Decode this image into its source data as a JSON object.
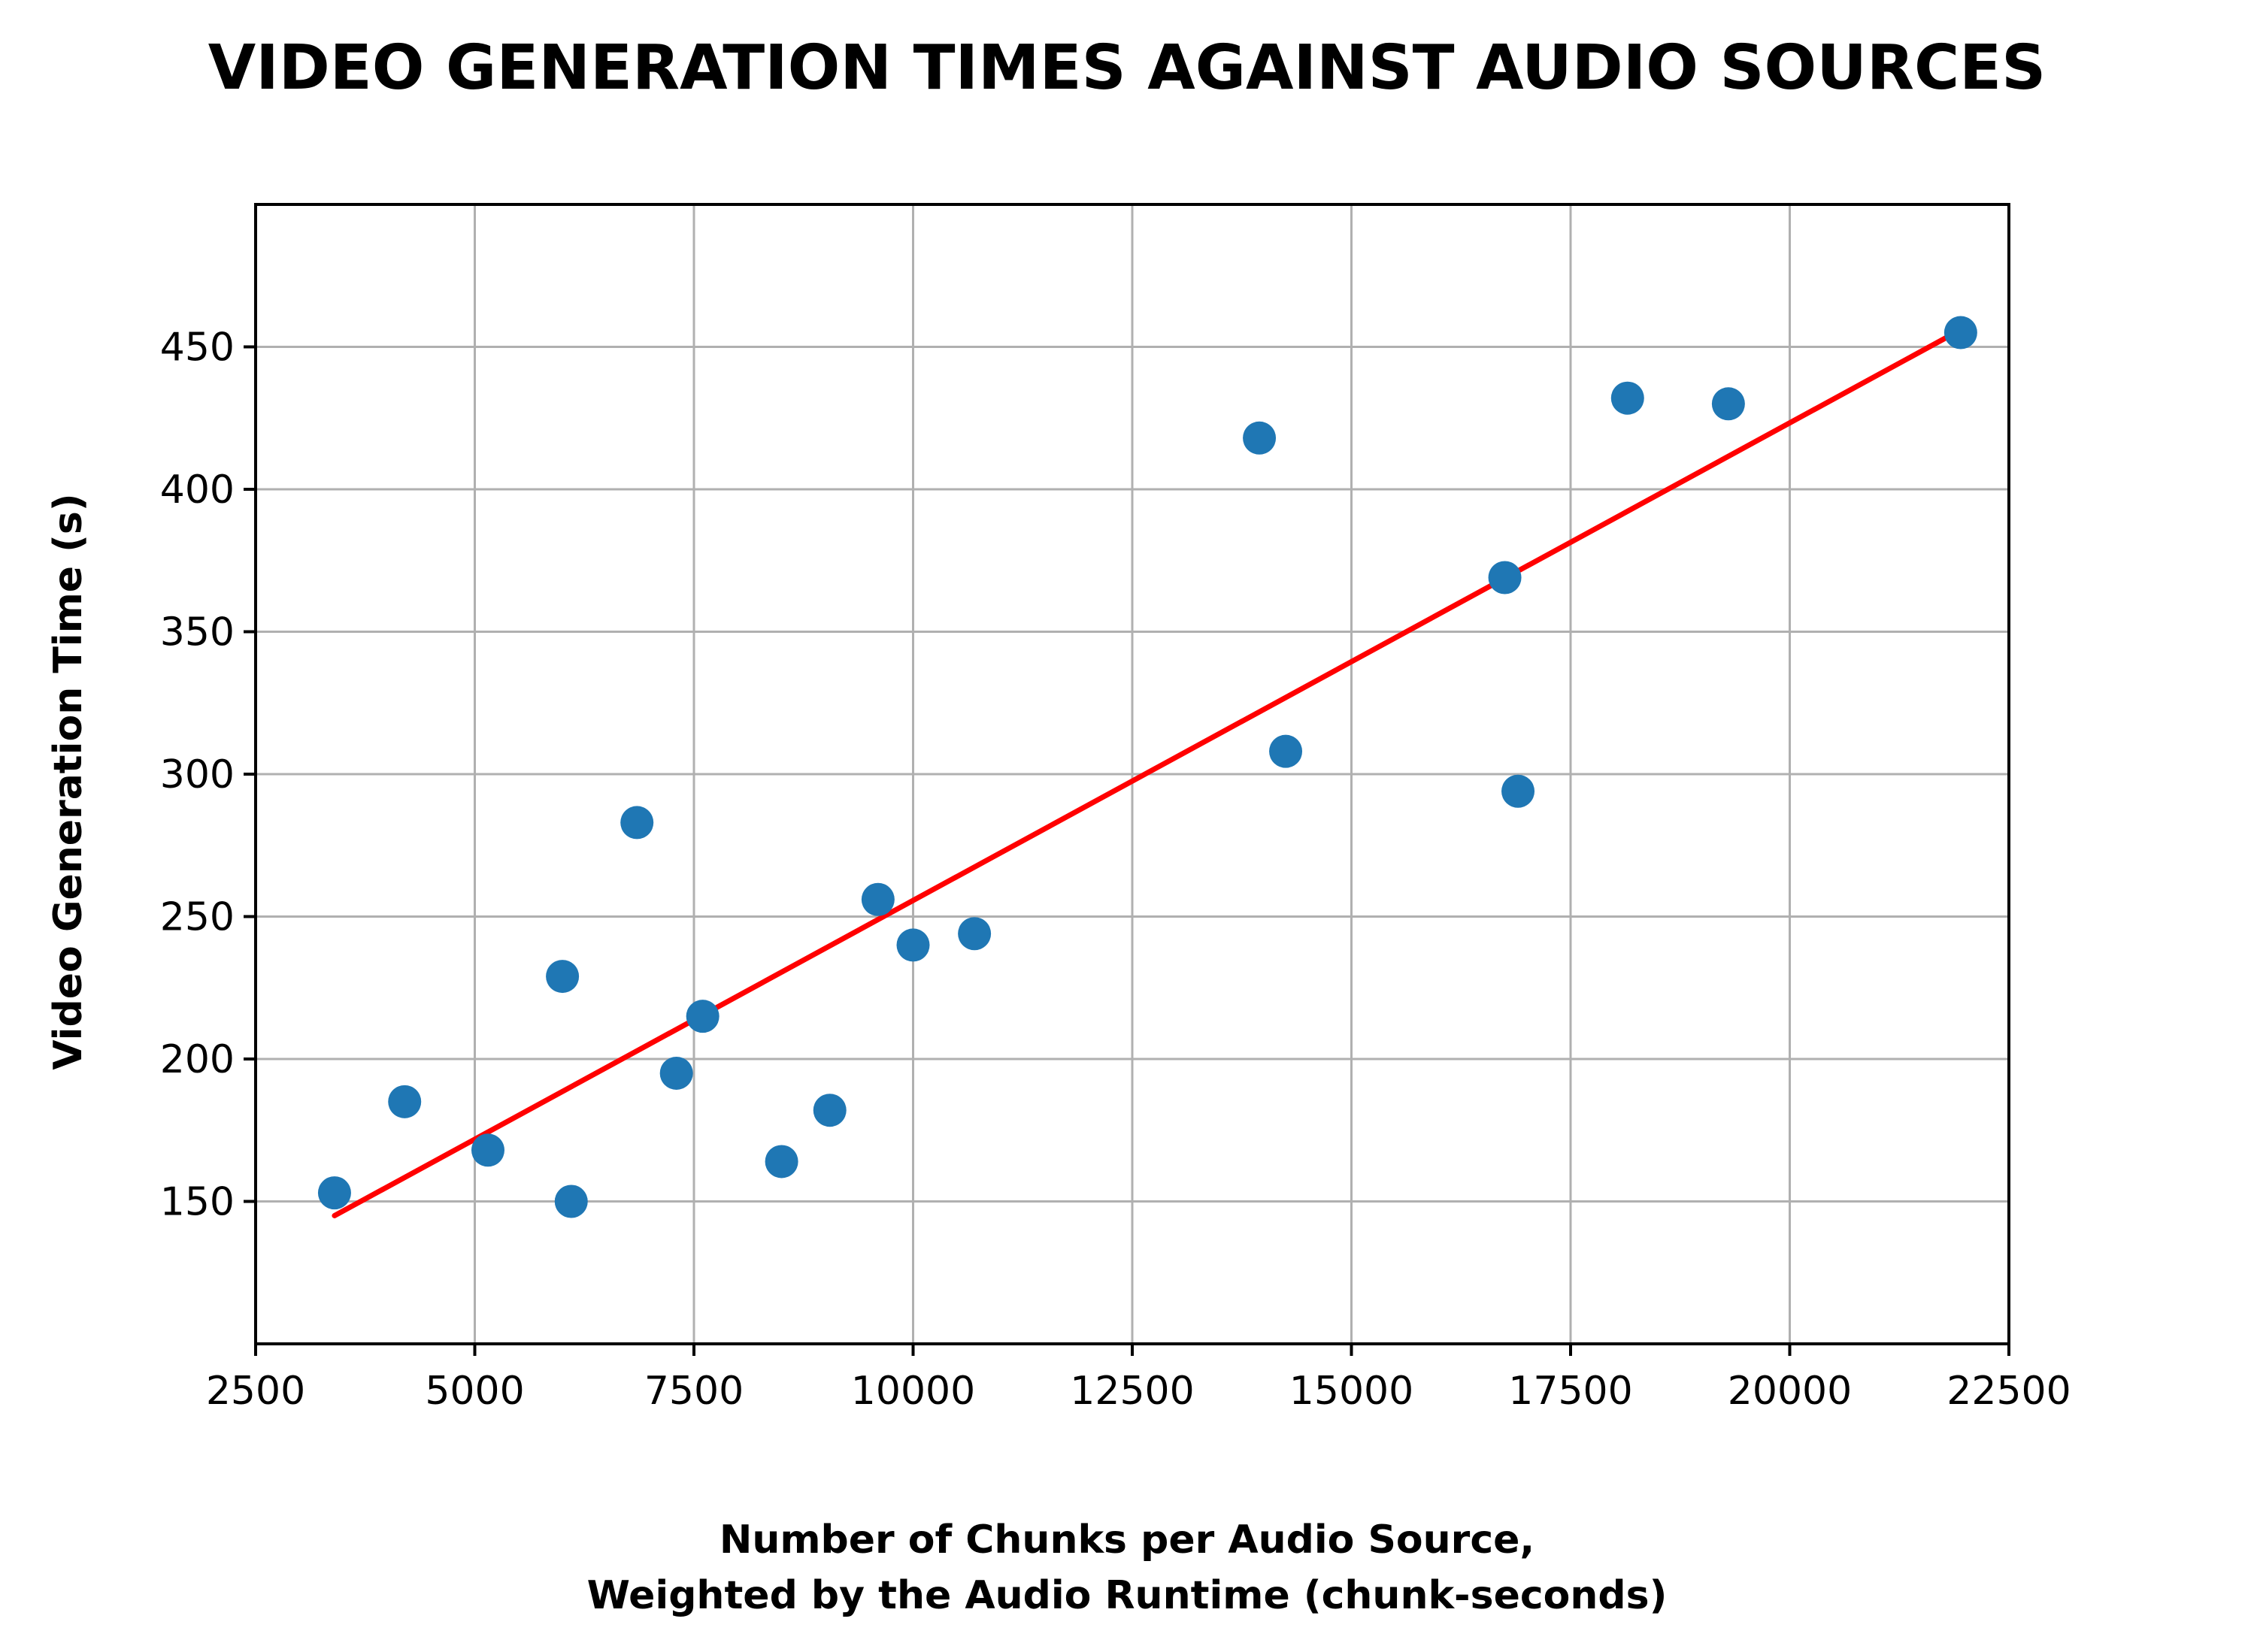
{
  "chart_data": {
    "type": "scatter",
    "title": "VIDEO GENERATION TIMES AGAINST AUDIO SOURCES",
    "xlabel_lines": [
      "Number of Chunks per Audio Source,",
      "Weighted by the Audio Runtime (chunk-seconds)"
    ],
    "ylabel": "Video Generation Time (s)",
    "xlim": [
      2500,
      22500
    ],
    "ylim": [
      100,
      500
    ],
    "xticks": [
      2500,
      5000,
      7500,
      10000,
      12500,
      15000,
      17500,
      20000,
      22500
    ],
    "yticks": [
      150,
      200,
      250,
      300,
      350,
      400,
      450
    ],
    "grid": true,
    "point_color": "#1f77b4",
    "trend_color": "#ff0000",
    "points": [
      {
        "x": 3400,
        "y": 153
      },
      {
        "x": 4200,
        "y": 185
      },
      {
        "x": 5150,
        "y": 168
      },
      {
        "x": 6000,
        "y": 229
      },
      {
        "x": 6100,
        "y": 150
      },
      {
        "x": 6850,
        "y": 283
      },
      {
        "x": 7300,
        "y": 195
      },
      {
        "x": 7600,
        "y": 215
      },
      {
        "x": 8500,
        "y": 164
      },
      {
        "x": 9050,
        "y": 182
      },
      {
        "x": 9600,
        "y": 256
      },
      {
        "x": 10000,
        "y": 240
      },
      {
        "x": 10700,
        "y": 244
      },
      {
        "x": 13950,
        "y": 418
      },
      {
        "x": 14250,
        "y": 308
      },
      {
        "x": 16750,
        "y": 369
      },
      {
        "x": 16900,
        "y": 294
      },
      {
        "x": 18150,
        "y": 432
      },
      {
        "x": 19300,
        "y": 430
      },
      {
        "x": 21950,
        "y": 455
      }
    ],
    "trendline": {
      "x": [
        3400,
        21950
      ],
      "y": [
        145,
        456
      ]
    }
  }
}
